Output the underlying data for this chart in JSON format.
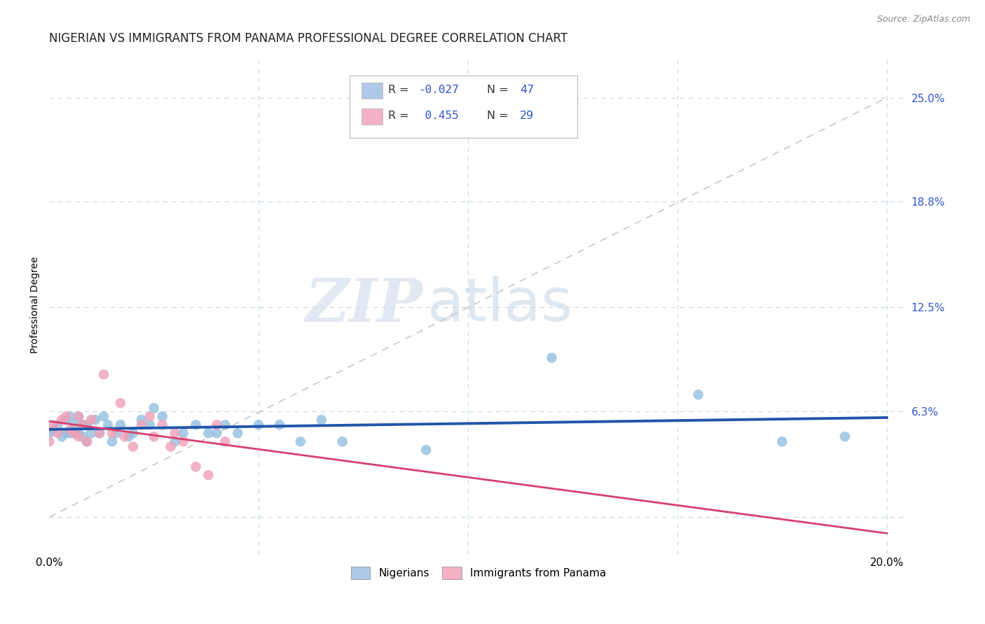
{
  "title": "NIGERIAN VS IMMIGRANTS FROM PANAMA PROFESSIONAL DEGREE CORRELATION CHART",
  "source": "Source: ZipAtlas.com",
  "ylabel": "Professional Degree",
  "xlim": [
    0.0,
    0.205
  ],
  "ylim": [
    -0.022,
    0.275
  ],
  "ytick_vals": [
    0.0,
    0.063,
    0.125,
    0.188,
    0.25
  ],
  "xtick_vals": [
    0.0,
    0.05,
    0.1,
    0.15,
    0.2
  ],
  "nigerians": {
    "color": "#92bfe0",
    "line_color": "#2255aa",
    "x": [
      0.0,
      0.001,
      0.002,
      0.003,
      0.004,
      0.004,
      0.005,
      0.005,
      0.006,
      0.006,
      0.007,
      0.007,
      0.008,
      0.008,
      0.009,
      0.009,
      0.01,
      0.011,
      0.012,
      0.013,
      0.014,
      0.015,
      0.016,
      0.017,
      0.019,
      0.02,
      0.022,
      0.024,
      0.025,
      0.027,
      0.03,
      0.032,
      0.035,
      0.038,
      0.04,
      0.042,
      0.045,
      0.05,
      0.055,
      0.06,
      0.065,
      0.07,
      0.09,
      0.12,
      0.155,
      0.175,
      0.19
    ],
    "y": [
      0.05,
      0.052,
      0.055,
      0.048,
      0.05,
      0.058,
      0.05,
      0.06,
      0.05,
      0.055,
      0.05,
      0.06,
      0.048,
      0.055,
      0.045,
      0.055,
      0.05,
      0.058,
      0.05,
      0.06,
      0.055,
      0.045,
      0.05,
      0.055,
      0.048,
      0.05,
      0.058,
      0.055,
      0.065,
      0.06,
      0.045,
      0.05,
      0.055,
      0.05,
      0.05,
      0.055,
      0.05,
      0.055,
      0.055,
      0.045,
      0.058,
      0.045,
      0.04,
      0.095,
      0.073,
      0.045,
      0.048
    ]
  },
  "panama": {
    "color": "#f0a0b8",
    "line_color": "#d84070",
    "x": [
      0.0,
      0.001,
      0.002,
      0.003,
      0.004,
      0.005,
      0.006,
      0.007,
      0.007,
      0.008,
      0.009,
      0.01,
      0.012,
      0.013,
      0.015,
      0.017,
      0.018,
      0.02,
      0.022,
      0.024,
      0.025,
      0.027,
      0.029,
      0.03,
      0.032,
      0.035,
      0.038,
      0.04,
      0.042
    ],
    "y": [
      0.045,
      0.055,
      0.05,
      0.058,
      0.06,
      0.052,
      0.05,
      0.06,
      0.048,
      0.055,
      0.045,
      0.058,
      0.05,
      0.085,
      0.05,
      0.068,
      0.048,
      0.042,
      0.055,
      0.06,
      0.048,
      0.055,
      0.042,
      0.05,
      0.045,
      0.03,
      0.025,
      0.055,
      0.045
    ]
  },
  "watermark_zip": "ZIP",
  "watermark_atlas": "atlas",
  "background_color": "#ffffff",
  "grid_color": "#c8d8ea",
  "title_fontsize": 12,
  "axis_label_fontsize": 10,
  "tick_fontsize": 11,
  "right_tick_color": "#3355cc"
}
